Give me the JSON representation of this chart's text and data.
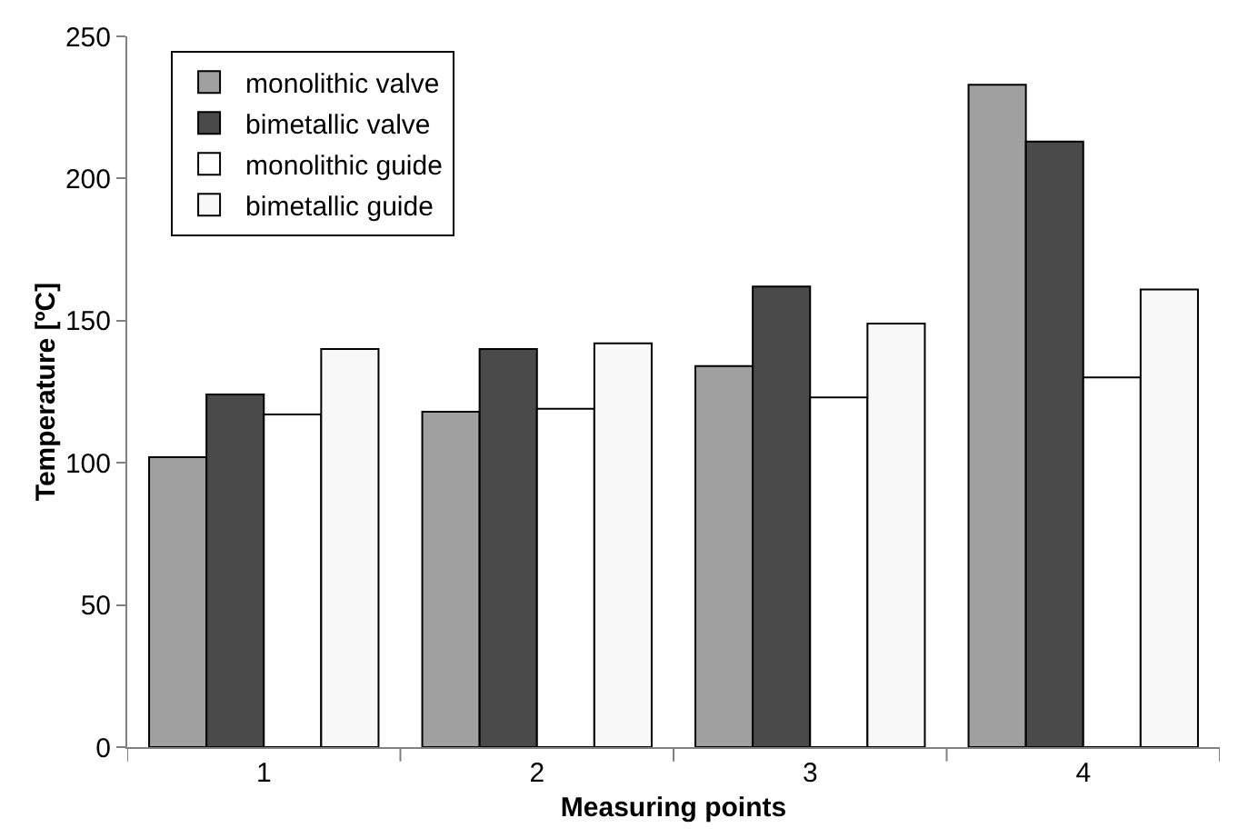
{
  "chart_data": {
    "type": "bar",
    "xlabel": "Measuring points",
    "ylabel": "Temperature [ºC]",
    "categories": [
      "1",
      "2",
      "3",
      "4"
    ],
    "series": [
      {
        "name": "monolithic valve",
        "color": "#a0a0a0",
        "values": [
          102,
          118,
          134,
          233
        ]
      },
      {
        "name": "bimetallic valve",
        "color": "#4a4a4a",
        "values": [
          124,
          140,
          162,
          213
        ]
      },
      {
        "name": "monolithic guide",
        "color": "#ffffff",
        "values": [
          117,
          119,
          123,
          130
        ]
      },
      {
        "name": "bimetallic guide",
        "color": "#f8f8f8",
        "values": [
          140,
          142,
          149,
          161
        ]
      }
    ],
    "ylim": [
      0,
      250
    ],
    "yticks": [
      0,
      50,
      100,
      150,
      200,
      250
    ],
    "grid": false,
    "legend": "top left"
  }
}
